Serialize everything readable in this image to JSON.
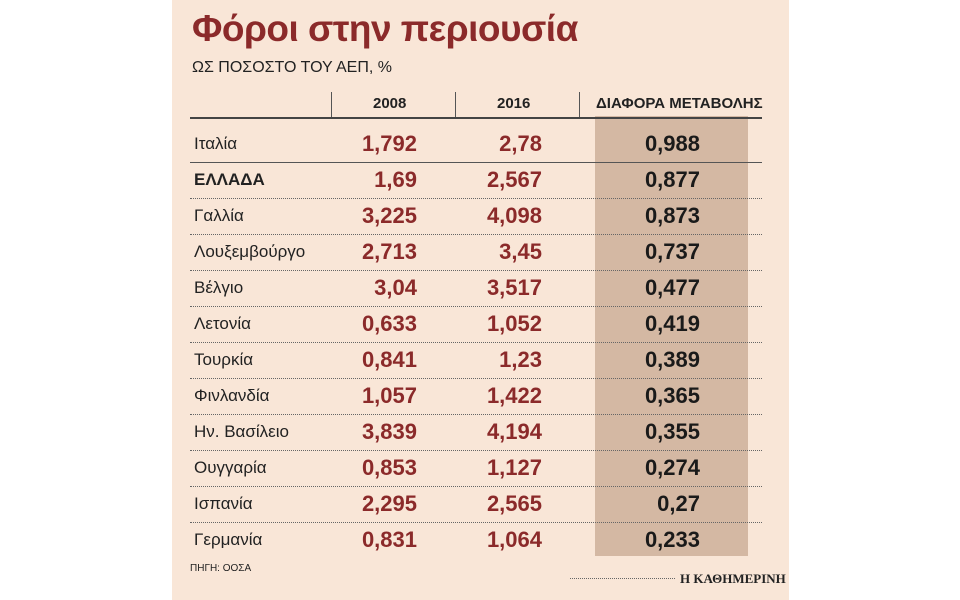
{
  "title": "Φόροι στην περιουσία",
  "subtitle": "ΩΣ ΠΟΣΟΣΤΟ ΤΟΥ ΑΕΠ, %",
  "source": "ΠΗΓΗ: ΟΟΣΑ",
  "brand": "Η ΚΑΘΗΜΕΡΙΝΗ",
  "colors": {
    "accent": "#8b2a2a",
    "panel": "#f9e6d7",
    "highlight_column": "#d4b8a3"
  },
  "chart_data": {
    "type": "table",
    "title": "Φόροι στην περιουσία",
    "subtitle": "ΩΣ ΠΟΣΟΣΤΟ ΤΟΥ ΑΕΠ, %",
    "columns": [
      "",
      "2008",
      "2016",
      "ΔΙΑΦΟΡΑ ΜΕΤΑΒΟΛΗΣ"
    ],
    "rows": [
      {
        "country": "Ιταλία",
        "y2008": "1,792",
        "y2016": "2,78",
        "diff": "0,988"
      },
      {
        "country": "ΕΛΛΑΔΑ",
        "y2008": "1,69",
        "y2016": "2,567",
        "diff": "0,877"
      },
      {
        "country": "Γαλλία",
        "y2008": "3,225",
        "y2016": "4,098",
        "diff": "0,873"
      },
      {
        "country": "Λουξεμβούργο",
        "y2008": "2,713",
        "y2016": "3,45",
        "diff": "0,737"
      },
      {
        "country": "Βέλγιο",
        "y2008": "3,04",
        "y2016": "3,517",
        "diff": "0,477"
      },
      {
        "country": "Λετονία",
        "y2008": "0,633",
        "y2016": "1,052",
        "diff": "0,419"
      },
      {
        "country": "Τουρκία",
        "y2008": "0,841",
        "y2016": "1,23",
        "diff": "0,389"
      },
      {
        "country": "Φινλανδία",
        "y2008": "1,057",
        "y2016": "1,422",
        "diff": "0,365"
      },
      {
        "country": "Ην. Βασίλειο",
        "y2008": "3,839",
        "y2016": "4,194",
        "diff": "0,355"
      },
      {
        "country": "Ουγγαρία",
        "y2008": "0,853",
        "y2016": "1,127",
        "diff": "0,274"
      },
      {
        "country": "Ισπανία",
        "y2008": "2,295",
        "y2016": "2,565",
        "diff": "0,27"
      },
      {
        "country": "Γερμανία",
        "y2008": "0,831",
        "y2016": "1,064",
        "diff": "0,233"
      }
    ]
  }
}
